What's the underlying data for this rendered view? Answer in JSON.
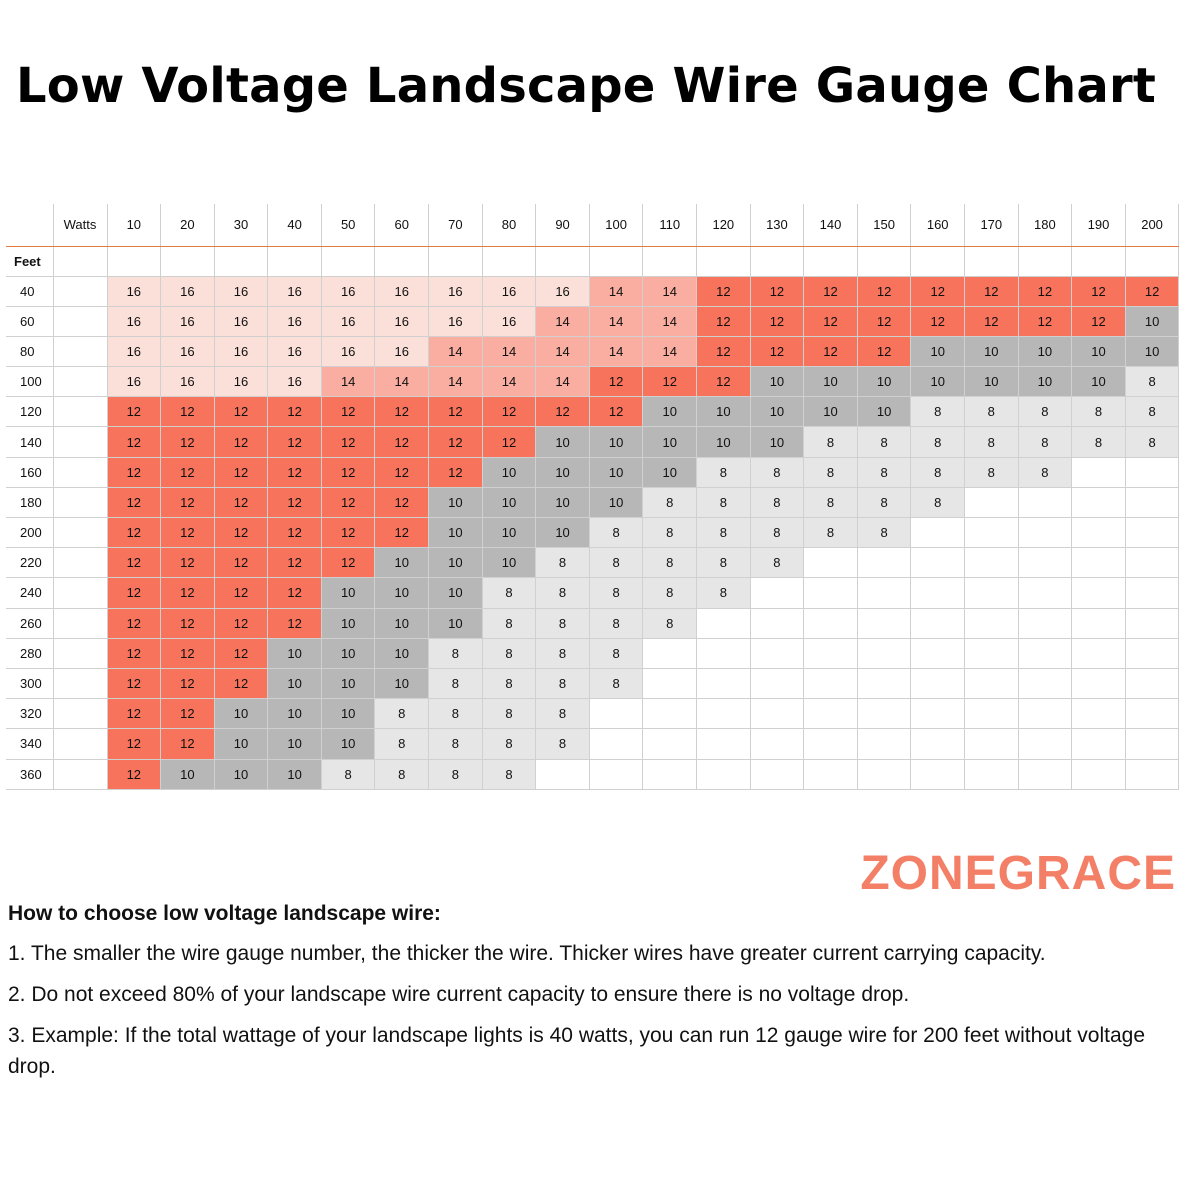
{
  "title": "Low Voltage Landscape Wire Gauge Chart",
  "brand": "ZONEGRACE",
  "colors": {
    "16": "#fbe0da",
    "14": "#f9aea1",
    "12": "#f8735c",
    "10": "#b7b7b7",
    "8": "#e6e6e6",
    "brand": "#f27f66",
    "header_rule": "#e07a3e"
  },
  "chart_data": {
    "type": "table",
    "row_header": "Feet",
    "column_header": "Watts",
    "watts": [
      10,
      20,
      30,
      40,
      50,
      60,
      70,
      80,
      90,
      100,
      110,
      120,
      130,
      140,
      150,
      160,
      170,
      180,
      190,
      200
    ],
    "feet": [
      40,
      60,
      80,
      100,
      120,
      140,
      160,
      180,
      200,
      220,
      240,
      260,
      280,
      300,
      320,
      340,
      360
    ],
    "gauges": [
      [
        16,
        16,
        16,
        16,
        16,
        16,
        16,
        16,
        16,
        14,
        14,
        12,
        12,
        12,
        12,
        12,
        12,
        12,
        12,
        12
      ],
      [
        16,
        16,
        16,
        16,
        16,
        16,
        16,
        16,
        14,
        14,
        14,
        12,
        12,
        12,
        12,
        12,
        12,
        12,
        12,
        10
      ],
      [
        16,
        16,
        16,
        16,
        16,
        16,
        14,
        14,
        14,
        14,
        14,
        12,
        12,
        12,
        12,
        10,
        10,
        10,
        10,
        10
      ],
      [
        16,
        16,
        16,
        16,
        14,
        14,
        14,
        14,
        14,
        12,
        12,
        12,
        10,
        10,
        10,
        10,
        10,
        10,
        10,
        8
      ],
      [
        12,
        12,
        12,
        12,
        12,
        12,
        12,
        12,
        12,
        12,
        10,
        10,
        10,
        10,
        10,
        8,
        8,
        8,
        8,
        8
      ],
      [
        12,
        12,
        12,
        12,
        12,
        12,
        12,
        12,
        10,
        10,
        10,
        10,
        10,
        8,
        8,
        8,
        8,
        8,
        8,
        8
      ],
      [
        12,
        12,
        12,
        12,
        12,
        12,
        12,
        10,
        10,
        10,
        10,
        8,
        8,
        8,
        8,
        8,
        8,
        8,
        null,
        null
      ],
      [
        12,
        12,
        12,
        12,
        12,
        12,
        10,
        10,
        10,
        10,
        8,
        8,
        8,
        8,
        8,
        8,
        null,
        null,
        null,
        null
      ],
      [
        12,
        12,
        12,
        12,
        12,
        12,
        10,
        10,
        10,
        8,
        8,
        8,
        8,
        8,
        8,
        null,
        null,
        null,
        null,
        null
      ],
      [
        12,
        12,
        12,
        12,
        12,
        10,
        10,
        10,
        8,
        8,
        8,
        8,
        8,
        null,
        null,
        null,
        null,
        null,
        null,
        null
      ],
      [
        12,
        12,
        12,
        12,
        10,
        10,
        10,
        8,
        8,
        8,
        8,
        8,
        null,
        null,
        null,
        null,
        null,
        null,
        null,
        null
      ],
      [
        12,
        12,
        12,
        12,
        10,
        10,
        10,
        8,
        8,
        8,
        8,
        null,
        null,
        null,
        null,
        null,
        null,
        null,
        null,
        null
      ],
      [
        12,
        12,
        12,
        10,
        10,
        10,
        8,
        8,
        8,
        8,
        null,
        null,
        null,
        null,
        null,
        null,
        null,
        null,
        null,
        null
      ],
      [
        12,
        12,
        12,
        10,
        10,
        10,
        8,
        8,
        8,
        8,
        null,
        null,
        null,
        null,
        null,
        null,
        null,
        null,
        null,
        null
      ],
      [
        12,
        12,
        10,
        10,
        10,
        8,
        8,
        8,
        8,
        null,
        null,
        null,
        null,
        null,
        null,
        null,
        null,
        null,
        null,
        null
      ],
      [
        12,
        12,
        10,
        10,
        10,
        8,
        8,
        8,
        8,
        null,
        null,
        null,
        null,
        null,
        null,
        null,
        null,
        null,
        null,
        null
      ],
      [
        12,
        10,
        10,
        10,
        8,
        8,
        8,
        8,
        null,
        null,
        null,
        null,
        null,
        null,
        null,
        null,
        null,
        null,
        null,
        null
      ]
    ]
  },
  "notes": {
    "heading": "How to choose low voltage landscape wire:",
    "items": [
      "1. The smaller the wire gauge number, the thicker the wire. Thicker wires have greater current carrying capacity.",
      "2. Do not exceed 80% of your landscape wire current capacity to ensure there is no voltage drop.",
      "3. Example: If the total wattage of your landscape lights is 40 watts, you can run 12 gauge wire for 200 feet without voltage drop."
    ]
  }
}
